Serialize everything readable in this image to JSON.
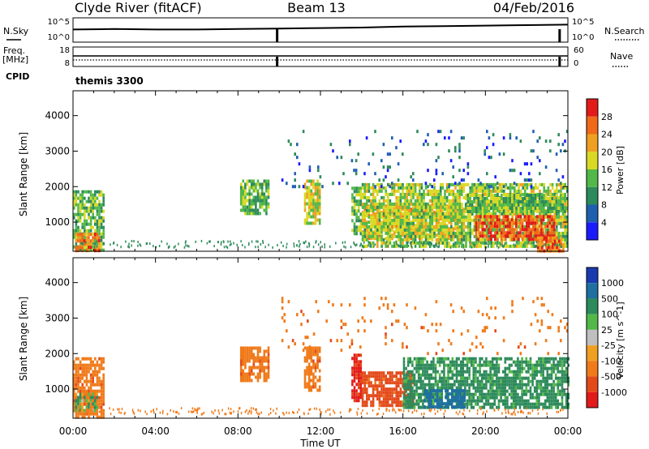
{
  "header": {
    "station": "Clyde River (fitACF)",
    "beam": "Beam 13",
    "date": "04/Feb/2016"
  },
  "panel_labels": {
    "nsky": "N.Sky",
    "nsearch": "N.Search",
    "freq": "Freq.",
    "freq_unit": "[MHz]",
    "nave": "Nave",
    "cpid": "CPID",
    "cpid_value": "themis 3300"
  },
  "small_axes": {
    "noise_ticks": [
      "10^5",
      "10^0"
    ],
    "noise_right_ticks": [
      "10^5",
      "10^0"
    ],
    "freq_ticks": [
      "18",
      "8"
    ],
    "nave_ticks": [
      "60",
      "0"
    ]
  },
  "colors": {
    "power": [
      "#1a1aff",
      "#1f5fb0",
      "#2d8a5a",
      "#52b848",
      "#d9d924",
      "#f0a020",
      "#f06a1a",
      "#e31a1a"
    ],
    "velocity": [
      "#1a3ab0",
      "#1f6fa0",
      "#2d8a5a",
      "#52b848",
      "#bfbfbf",
      "#f0a020",
      "#f07a1a",
      "#e34a1a",
      "#e31a1a"
    ]
  },
  "chart_data": [
    {
      "type": "heatmap",
      "name": "power",
      "xlabel": "",
      "ylabel": "Slant Range [km]",
      "ylim": [
        180,
        4700
      ],
      "xlim": [
        0,
        24
      ],
      "yticks": [
        1000,
        2000,
        3000,
        4000
      ],
      "colorbar": {
        "label": "Power [dB]",
        "ticks": [
          "4",
          "8",
          "12",
          "16",
          "20",
          "24",
          "28"
        ],
        "range": [
          0,
          32
        ]
      },
      "clusters": [
        {
          "t0": 0.0,
          "t1": 1.5,
          "r0": 200,
          "r1": 1900,
          "v": 14
        },
        {
          "t0": 0.1,
          "t1": 1.3,
          "r0": 200,
          "r1": 700,
          "v": 24
        },
        {
          "t0": 8.1,
          "t1": 9.5,
          "r0": 1200,
          "r1": 2200,
          "v": 14
        },
        {
          "t0": 11.2,
          "t1": 12.0,
          "r0": 1000,
          "r1": 2200,
          "v": 18
        },
        {
          "t0": 13.5,
          "t1": 14.0,
          "r0": 700,
          "r1": 2000,
          "v": 14
        },
        {
          "t0": 14.0,
          "t1": 19.0,
          "r0": 500,
          "r1": 1500,
          "v": 20
        },
        {
          "t0": 14.0,
          "t1": 24.0,
          "r0": 300,
          "r1": 2100,
          "v": 16
        },
        {
          "t0": 19.5,
          "t1": 23.3,
          "r0": 500,
          "r1": 1200,
          "v": 28
        },
        {
          "t0": 19.0,
          "t1": 24.0,
          "r0": 1300,
          "r1": 1800,
          "v": 14
        },
        {
          "t0": 22.5,
          "t1": 23.8,
          "r0": 200,
          "r1": 600,
          "v": 26
        },
        {
          "t0": 10.0,
          "t1": 24.0,
          "r0": 2000,
          "r1": 3600,
          "v": 6,
          "sparse": true
        }
      ]
    },
    {
      "type": "heatmap",
      "name": "velocity",
      "xlabel": "Time UT",
      "ylabel": "Slant Range [km]",
      "ylim": [
        180,
        4700
      ],
      "xlim": [
        0,
        24
      ],
      "yticks": [
        1000,
        2000,
        3000,
        4000
      ],
      "xticks": [
        "00:00",
        "04:00",
        "08:00",
        "12:00",
        "16:00",
        "20:00",
        "00:00"
      ],
      "colorbar": {
        "label": "Velocity [m s^-1]",
        "ticks": [
          "1000",
          "500",
          "100",
          "25",
          "-25",
          "-100",
          "-500",
          "-1000"
        ]
      },
      "clusters": [
        {
          "t0": 0.0,
          "t1": 1.5,
          "r0": 200,
          "r1": 1900,
          "v": -200
        },
        {
          "t0": 0.1,
          "t1": 1.2,
          "r0": 400,
          "r1": 900,
          "v": 0
        },
        {
          "t0": 8.1,
          "t1": 9.5,
          "r0": 1200,
          "r1": 2200,
          "v": -200
        },
        {
          "t0": 11.2,
          "t1": 12.0,
          "r0": 1000,
          "r1": 2200,
          "v": -200
        },
        {
          "t0": 13.5,
          "t1": 14.0,
          "r0": 700,
          "r1": 2000,
          "v": -800
        },
        {
          "t0": 14.0,
          "t1": 16.5,
          "r0": 500,
          "r1": 1500,
          "v": -400
        },
        {
          "t0": 16.0,
          "t1": 24.0,
          "r0": 500,
          "r1": 1900,
          "v": 150
        },
        {
          "t0": 17.0,
          "t1": 19.0,
          "r0": 500,
          "r1": 1000,
          "v": 600
        },
        {
          "t0": 10.0,
          "t1": 24.0,
          "r0": 2000,
          "r1": 3600,
          "v": -200,
          "sparse": true
        }
      ]
    },
    {
      "type": "line",
      "name": "noise",
      "x": [
        0,
        2,
        4,
        6,
        8,
        10,
        12,
        14,
        16,
        18,
        20,
        22,
        24
      ],
      "y": [
        2.6,
        2.7,
        2.6,
        2.6,
        2.7,
        2.8,
        2.9,
        3.0,
        3.2,
        3.3,
        3.4,
        3.5,
        3.6
      ],
      "spikes": [
        9.9,
        23.6
      ]
    },
    {
      "type": "line",
      "name": "frequency",
      "x": [
        0,
        24
      ],
      "y": [
        10.9,
        10.9
      ],
      "spikes": [
        9.9,
        23.6
      ]
    }
  ]
}
